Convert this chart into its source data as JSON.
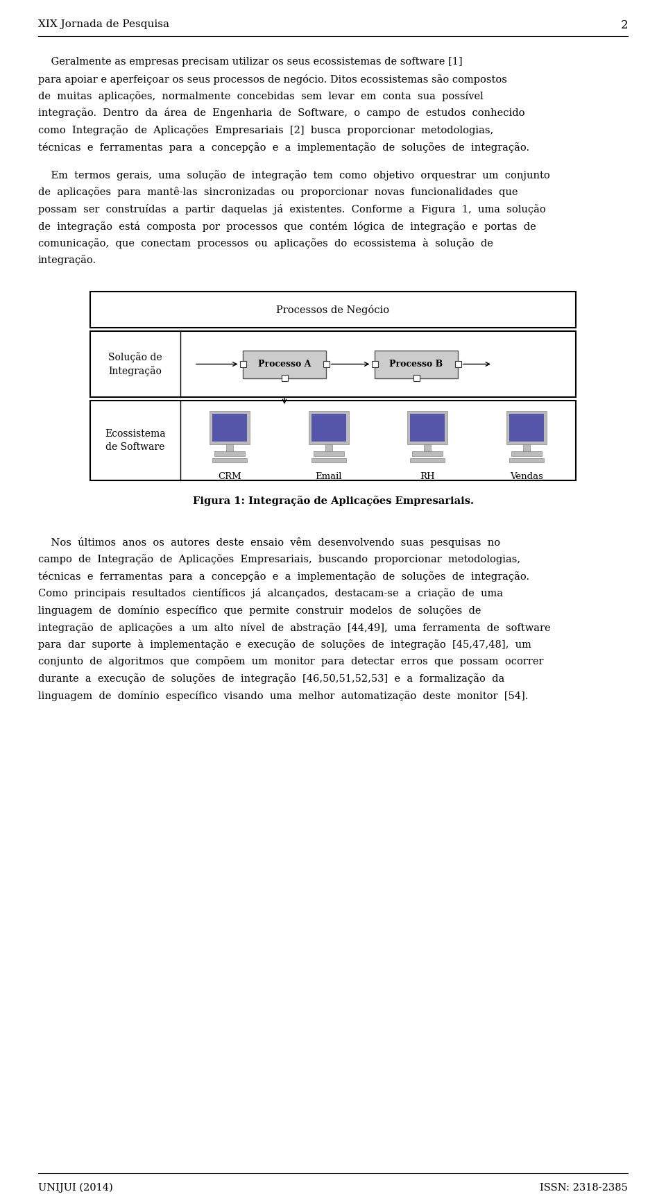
{
  "page_number": "2",
  "header": "XIX Jornada de Pesquisa",
  "footer_left": "UNIJUI (2014)",
  "footer_right": "ISSN: 2318-2385",
  "paragraph1_lines": [
    "    Geralmente as empresas precisam utilizar os seus ecossistemas de software [1]",
    "para apoiar e aperfeiçoar os seus processos de negócio. Ditos ecossistemas são compostos",
    "de  muitas  aplicações,  normalmente  concebidas  sem  levar  em  conta  sua  possível",
    "integração.  Dentro  da  área  de  Engenharia  de  Software,  o  campo  de  estudos  conhecido",
    "como  Integração  de  Aplicações  Empresariais  [2]  busca  proporcionar  metodologias,",
    "técnicas  e  ferramentas  para  a  concepção  e  a  implementação  de  soluções  de  integração."
  ],
  "paragraph2_lines": [
    "    Em  termos  gerais,  uma  solução  de  integração  tem  como  objetivo  orquestrar  um  conjunto",
    "de  aplicações  para  mantê-las  sincronizadas  ou  proporcionar  novas  funcionalidades  que",
    "possam  ser  construídas  a  partir  daquelas  já  existentes.  Conforme  a  Figura  1,  uma  solução",
    "de  integração  está  composta  por  processos  que  contém  lógica  de  integração  e  portas  de",
    "comunicação,  que  conectam  processos  ou  aplicações  do  ecossistema  à  solução  de",
    "integração."
  ],
  "fig_caption": "Figura 1: Integração de Aplicações Empresariais.",
  "paragraph3_lines": [
    "    Nos  últimos  anos  os  autores  deste  ensaio  vêm  desenvolvendo  suas  pesquisas  no",
    "campo  de  Integração  de  Aplicações  Empresariais,  buscando  proporcionar  metodologias,",
    "técnicas  e  ferramentas  para  a  concepção  e  a  implementação  de  soluções  de  integração.",
    "Como  principais  resultados  científicos  já  alcançados,  destacam-se  a  criação  de  uma",
    "linguagem  de  domínio  específico  que  permite  construir  modelos  de  soluções  de",
    "integração  de  aplicações  a  um  alto  nível  de  abstração  [44,49],  uma  ferramenta  de  software",
    "para  dar  suporte  à  implementação  e  execução  de  soluções  de  integração  [45,47,48],  um",
    "conjunto  de  algoritmos  que  compõem  um  monitor  para  detectar  erros  que  possam  ocorrer",
    "durante  a  execução  de  soluções  de  integração  [46,50,51,52,53]  e  a  formalização  da",
    "linguagem  de  domínio  específico  visando  uma  melhor  automatização  deste  monitor  [54]."
  ],
  "bg_color": "#ffffff",
  "text_color": "#000000"
}
